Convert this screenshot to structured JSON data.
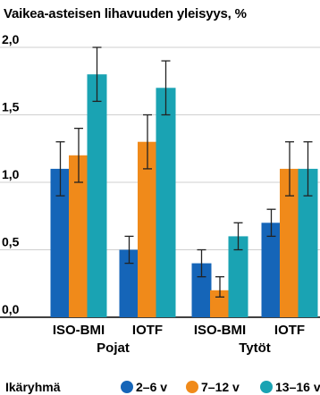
{
  "chart_data": {
    "type": "bar",
    "title": "Vaikea-asteisen lihavuuden yleisyys, %",
    "ylim": [
      0,
      2.0
    ],
    "yticks": [
      "0,0",
      "0,5",
      "1,0",
      "1,5",
      "2,0"
    ],
    "grid": true,
    "categories": [
      "ISO-BMI",
      "IOTF",
      "ISO-BMI",
      "IOTF"
    ],
    "groups": [
      {
        "label": "Pojat",
        "categories": [
          0,
          1
        ]
      },
      {
        "label": "Tytöt",
        "categories": [
          2,
          3
        ]
      }
    ],
    "legend_title": "Ikäryhmä",
    "legend_position": "bottom",
    "series": [
      {
        "name": "2–6 v",
        "color": "#1565b8",
        "values": [
          1.1,
          0.5,
          0.4,
          0.7
        ],
        "err_low": [
          0.9,
          0.4,
          0.3,
          0.6
        ],
        "err_high": [
          1.3,
          0.6,
          0.5,
          0.8
        ]
      },
      {
        "name": "7–12 v",
        "color": "#f08a1a",
        "values": [
          1.2,
          1.3,
          0.2,
          1.1
        ],
        "err_low": [
          1.0,
          1.1,
          0.15,
          0.9
        ],
        "err_high": [
          1.4,
          1.5,
          0.3,
          1.3
        ]
      },
      {
        "name": "13–16 v",
        "color": "#1aa3b3",
        "values": [
          1.8,
          1.7,
          0.6,
          1.1
        ],
        "err_low": [
          1.6,
          1.5,
          0.5,
          0.9
        ],
        "err_high": [
          2.0,
          1.9,
          0.7,
          1.3
        ]
      }
    ]
  }
}
